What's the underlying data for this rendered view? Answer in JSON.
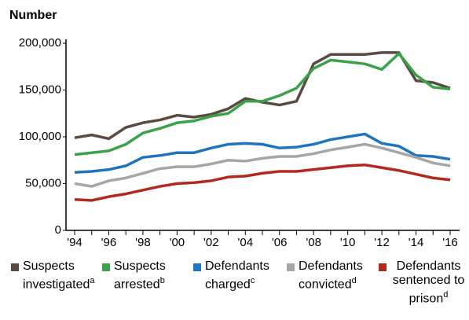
{
  "chart_data": {
    "type": "line",
    "title": "Number",
    "categories": [
      "'94",
      null,
      "'96",
      null,
      "'98",
      null,
      "'00",
      null,
      "'02",
      null,
      "'04",
      null,
      "'06",
      null,
      "'08",
      null,
      "'10",
      null,
      "'12",
      null,
      "'14",
      null,
      "'16"
    ],
    "ylim": [
      0,
      200000
    ],
    "yticks": [
      0,
      {
        "value": 50000,
        "label": "50,000"
      },
      {
        "value": 100000,
        "label": "100,000"
      },
      {
        "value": 150000,
        "label": "150,000"
      },
      {
        "value": 200000,
        "label": "200,000"
      }
    ],
    "grid": false,
    "series": [
      {
        "name": "Suspects investigated",
        "footnote": "a",
        "color": "#5b4a42",
        "values": [
          99000,
          102000,
          98000,
          110000,
          115000,
          118000,
          123000,
          121000,
          124000,
          130000,
          141000,
          137000,
          134000,
          138000,
          178000,
          188000,
          188000,
          188000,
          190000,
          190000,
          160000,
          158000,
          152000
        ]
      },
      {
        "name": "Suspects arrested",
        "footnote": "b",
        "color": "#3aa34a",
        "values": [
          81000,
          83000,
          85000,
          92000,
          104000,
          109000,
          115000,
          117000,
          122000,
          125000,
          138000,
          138000,
          144000,
          152000,
          173000,
          182000,
          180000,
          178000,
          172000,
          189000,
          166000,
          153000,
          151000
        ]
      },
      {
        "name": "Defendants charged",
        "footnote": "c",
        "color": "#1f75bd",
        "values": [
          62000,
          63000,
          65000,
          69000,
          78000,
          80000,
          83000,
          83000,
          88000,
          92000,
          93000,
          92000,
          88000,
          89000,
          92000,
          97000,
          100000,
          103000,
          93000,
          90000,
          80000,
          79000,
          76000
        ]
      },
      {
        "name": "Defendants convicted",
        "footnote": "d",
        "color": "#a6a6a6",
        "values": [
          50000,
          47000,
          53000,
          56000,
          61000,
          66000,
          68000,
          68000,
          71000,
          75000,
          74000,
          77000,
          79000,
          79000,
          82000,
          86000,
          89000,
          92000,
          88000,
          83000,
          78000,
          72000,
          69000
        ]
      },
      {
        "name": "Defendants sentenced to prison",
        "footnote": "d",
        "color": "#b22a1e",
        "values": [
          33000,
          32000,
          36000,
          39000,
          43000,
          47000,
          50000,
          51000,
          53000,
          57000,
          58000,
          61000,
          63000,
          63000,
          65000,
          67000,
          69000,
          70000,
          67000,
          64000,
          60000,
          56000,
          54000
        ]
      }
    ]
  }
}
